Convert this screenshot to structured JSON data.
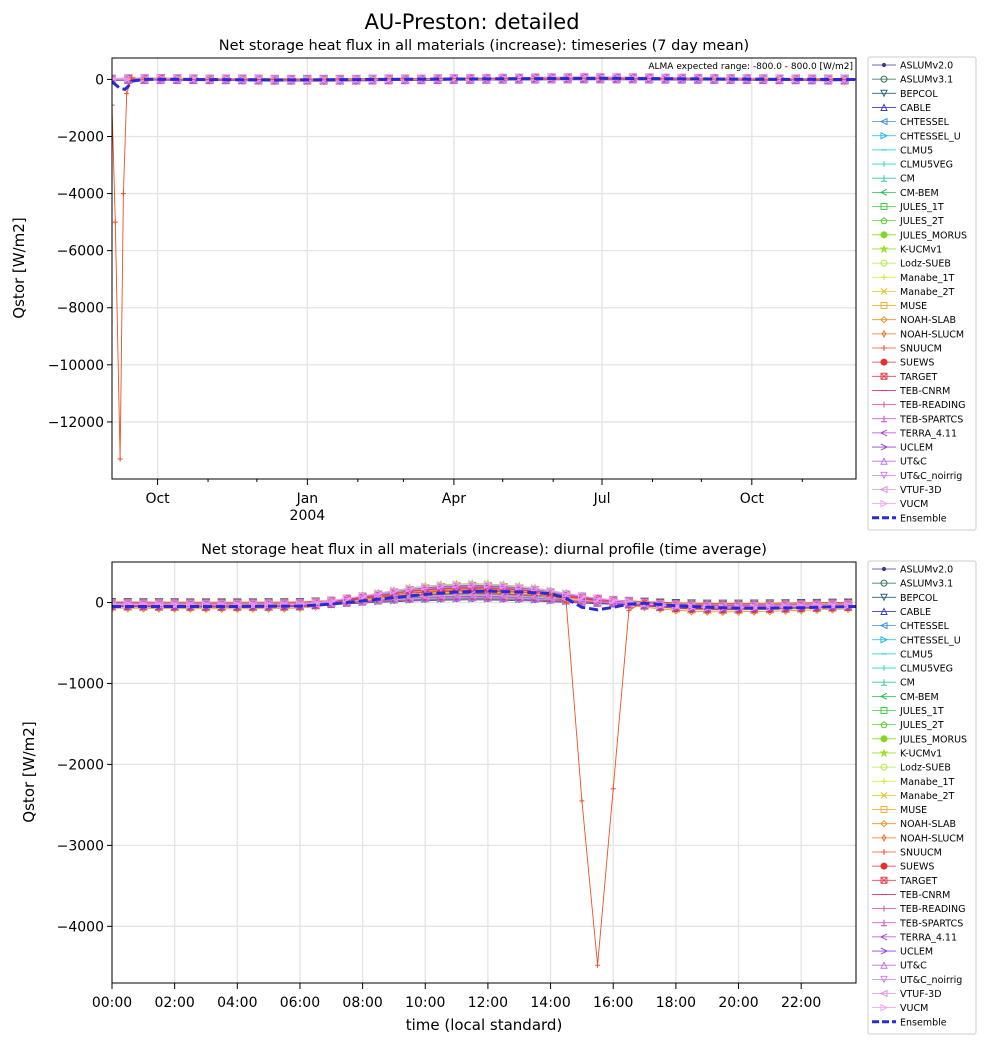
{
  "figure": {
    "title": "AU-Preston: detailed"
  },
  "models": [
    {
      "name": "ASLUMv2.0",
      "color": "#3b3b8c",
      "marker": "dot"
    },
    {
      "name": "ASLUMv3.1",
      "color": "#2e6e4a",
      "marker": "circle"
    },
    {
      "name": "BEPCOL",
      "color": "#2f5f7a",
      "marker": "tri-down"
    },
    {
      "name": "CABLE",
      "color": "#3a3ad0",
      "marker": "tri-up"
    },
    {
      "name": "CHTESSEL",
      "color": "#3a8fe0",
      "marker": "tri-left"
    },
    {
      "name": "CHTESSEL_U",
      "color": "#1fb7e8",
      "marker": "tri-right"
    },
    {
      "name": "CLMU5",
      "color": "#10c8c8",
      "marker": "dash"
    },
    {
      "name": "CLMU5VEG",
      "color": "#20d8c0",
      "marker": "vline"
    },
    {
      "name": "CM",
      "color": "#30c890",
      "marker": "tee"
    },
    {
      "name": "CM-BEM",
      "color": "#20c050",
      "marker": "lt"
    },
    {
      "name": "JULES_1T",
      "color": "#40d040",
      "marker": "square"
    },
    {
      "name": "JULES_2T",
      "color": "#60d030",
      "marker": "pentagon"
    },
    {
      "name": "JULES_MORUS",
      "color": "#80d820",
      "marker": "hexagon"
    },
    {
      "name": "K-UCMv1",
      "color": "#a0e030",
      "marker": "star"
    },
    {
      "name": "Lodz-SUEB",
      "color": "#b8e840",
      "marker": "octagon"
    },
    {
      "name": "Manabe_1T",
      "color": "#d8e830",
      "marker": "plus"
    },
    {
      "name": "Manabe_2T",
      "color": "#e8c020",
      "marker": "x"
    },
    {
      "name": "MUSE",
      "color": "#f0b030",
      "marker": "square"
    },
    {
      "name": "NOAH-SLAB",
      "color": "#f09020",
      "marker": "diamond"
    },
    {
      "name": "NOAH-SLUCM",
      "color": "#f07020",
      "marker": "thindiamond"
    },
    {
      "name": "SNUUCM",
      "color": "#f05020",
      "marker": "plus"
    },
    {
      "name": "SUEWS",
      "color": "#e83030",
      "marker": "filledplus"
    },
    {
      "name": "TARGET",
      "color": "#e84050",
      "marker": "xsquare"
    },
    {
      "name": "TEB-CNRM",
      "color": "#e0306e",
      "marker": "dash"
    },
    {
      "name": "TEB-READING",
      "color": "#e040a0",
      "marker": "vline"
    },
    {
      "name": "TEB-SPARTCS",
      "color": "#d040c0",
      "marker": "tee"
    },
    {
      "name": "TERRA_4.11",
      "color": "#b040d0",
      "marker": "lt"
    },
    {
      "name": "UCLEM",
      "color": "#9040d8",
      "marker": "gt"
    },
    {
      "name": "UT&C",
      "color": "#c070e0",
      "marker": "caret-up"
    },
    {
      "name": "UT&C_noirrig",
      "color": "#d080e8",
      "marker": "caret-down"
    },
    {
      "name": "VTUF-3D",
      "color": "#e090e0",
      "marker": "caret-left"
    },
    {
      "name": "VUCM",
      "color": "#f0a0f0",
      "marker": "caret-right"
    },
    {
      "name": "Ensemble",
      "color": "#2b2bd6",
      "marker": "ensemble"
    }
  ],
  "chart_data": [
    {
      "type": "line",
      "title": "Net storage heat flux in all materials (increase): timeseries (7 day mean)",
      "xlabel": "",
      "ylabel": "Qstor [W/m2]",
      "annotation": "ALMA expected range: -800.0 - 800.0 [W/m2]",
      "xlim": [
        0,
        457
      ],
      "ylim": [
        -14000,
        750
      ],
      "x_ticks": [
        {
          "x": 28,
          "label": "Oct"
        },
        {
          "x": 120,
          "label": "Jan",
          "label2": "2004"
        },
        {
          "x": 210,
          "label": "Apr"
        },
        {
          "x": 301,
          "label": "Jul"
        },
        {
          "x": 393,
          "label": "Oct"
        }
      ],
      "x_minor_ticks": [
        59,
        89,
        151,
        179,
        240,
        271,
        332,
        362,
        424
      ],
      "y_ticks": [
        0,
        -2000,
        -4000,
        -6000,
        -8000,
        -10000,
        -12000
      ],
      "grid": true,
      "legend": "outside-right",
      "marker_x": [
        0,
        10,
        20,
        30,
        40,
        50,
        60,
        70,
        80,
        90,
        100,
        110,
        120,
        130,
        140,
        150,
        160,
        170,
        180,
        190,
        200,
        210,
        220,
        230,
        240,
        250,
        260,
        270,
        280,
        290,
        300,
        310,
        320,
        330,
        340,
        350,
        360,
        370,
        380,
        390,
        400,
        410,
        420,
        430,
        440,
        450
      ],
      "series_base": [
        0,
        10,
        8,
        12,
        5,
        3,
        0,
        -5,
        -10,
        -15,
        -20,
        -22,
        -25,
        -25,
        -22,
        -20,
        -15,
        -10,
        -5,
        0,
        5,
        10,
        15,
        20,
        25,
        30,
        35,
        40,
        42,
        45,
        45,
        42,
        40,
        35,
        30,
        25,
        20,
        15,
        10,
        8,
        5,
        0,
        -5,
        -10,
        -15,
        -15
      ],
      "outliers": [
        {
          "model": "SNUUCM",
          "x": [
            0,
            2,
            5,
            7,
            9,
            12,
            14,
            20,
            30,
            60,
            100,
            200,
            300,
            400,
            457
          ],
          "y": [
            -900,
            -5000,
            -13300,
            -4000,
            -500,
            60,
            0,
            10,
            5,
            0,
            -5,
            30,
            40,
            5,
            0
          ]
        }
      ],
      "ensemble": {
        "x": [
          0,
          5,
          8,
          10,
          12,
          20,
          40,
          100,
          200,
          300,
          400,
          457
        ],
        "y": [
          -80,
          -320,
          -350,
          -240,
          -60,
          0,
          0,
          -20,
          10,
          40,
          5,
          -5
        ]
      }
    },
    {
      "type": "line",
      "title": "Net storage heat flux in all materials (increase): diurnal profile (time average)",
      "xlabel": "time (local standard)",
      "ylabel": "Qstor [W/m2]",
      "xlim": [
        0,
        23.75
      ],
      "ylim": [
        -4700,
        500
      ],
      "x_ticks": [
        {
          "x": 0,
          "label": "00:00"
        },
        {
          "x": 2,
          "label": "02:00"
        },
        {
          "x": 4,
          "label": "04:00"
        },
        {
          "x": 6,
          "label": "06:00"
        },
        {
          "x": 8,
          "label": "08:00"
        },
        {
          "x": 10,
          "label": "10:00"
        },
        {
          "x": 12,
          "label": "12:00"
        },
        {
          "x": 14,
          "label": "14:00"
        },
        {
          "x": 16,
          "label": "16:00"
        },
        {
          "x": 18,
          "label": "18:00"
        },
        {
          "x": 20,
          "label": "20:00"
        },
        {
          "x": 22,
          "label": "22:00"
        }
      ],
      "y_ticks": [
        0,
        -1000,
        -2000,
        -3000,
        -4000
      ],
      "grid": true,
      "legend": "outside-right",
      "marker_x": [
        0,
        0.5,
        1,
        1.5,
        2,
        2.5,
        3,
        3.5,
        4,
        4.5,
        5,
        5.5,
        6,
        6.5,
        7,
        7.5,
        8,
        8.5,
        9,
        9.5,
        10,
        10.5,
        11,
        11.5,
        12,
        12.5,
        13,
        13.5,
        14,
        14.5,
        15,
        15.5,
        16,
        16.5,
        17,
        17.5,
        18,
        18.5,
        19,
        19.5,
        20,
        20.5,
        21,
        21.5,
        22,
        22.5,
        23,
        23.5
      ],
      "series_base": [
        -40,
        -42,
        -44,
        -45,
        -46,
        -47,
        -48,
        -48,
        -48,
        -47,
        -46,
        -45,
        -40,
        -25,
        0,
        30,
        60,
        90,
        120,
        150,
        170,
        185,
        195,
        200,
        195,
        185,
        170,
        150,
        120,
        90,
        60,
        30,
        10,
        -10,
        -30,
        -50,
        -65,
        -75,
        -80,
        -82,
        -80,
        -78,
        -75,
        -70,
        -65,
        -60,
        -55,
        -50
      ],
      "outliers": [
        {
          "model": "SNUUCM",
          "x": [
            14,
            14.5,
            15,
            15.5,
            16,
            16.5,
            17
          ],
          "y": [
            100,
            0,
            -2450,
            -4480,
            -2300,
            -100,
            20
          ]
        }
      ],
      "ensemble": {
        "x": [
          0,
          2,
          4,
          6,
          7,
          8,
          9,
          10,
          11,
          12,
          13,
          14,
          14.5,
          15,
          15.5,
          16,
          16.5,
          17,
          18,
          19,
          20,
          21,
          22,
          23,
          23.75
        ],
        "y": [
          -50,
          -50,
          -50,
          -45,
          -20,
          20,
          60,
          100,
          130,
          140,
          130,
          110,
          50,
          -60,
          -90,
          -60,
          -20,
          -10,
          -40,
          -60,
          -70,
          -70,
          -65,
          -55,
          -50
        ]
      }
    }
  ]
}
